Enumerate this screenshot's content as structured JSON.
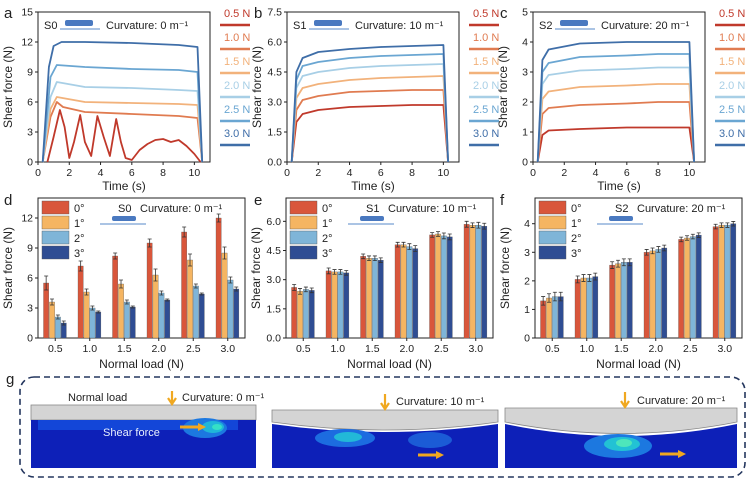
{
  "legend_colors": {
    "loads": [
      "#c0392b",
      "#e07b50",
      "#f2b27b",
      "#a8cfe6",
      "#6aa6d2",
      "#3f6ea8"
    ],
    "angles": [
      "#d9563b",
      "#f5b562",
      "#7fb5d8",
      "#2f4d93"
    ]
  },
  "chart_data": [
    {
      "panel": "a",
      "type": "line",
      "label": "S0",
      "curvature_text": "Curvature: 0 m⁻¹",
      "xlabel": "Time (s)",
      "ylabel": "Shear force (N)",
      "xlim": [
        0,
        11
      ],
      "ylim": [
        0,
        15
      ],
      "xticks": [
        0,
        2,
        4,
        6,
        8,
        10
      ],
      "yticks": [
        0,
        3,
        6,
        9,
        12,
        15
      ],
      "series": [
        {
          "name": "0.5 N",
          "values": [
            [
              0.6,
              0
            ],
            [
              1.0,
              2.5
            ],
            [
              1.4,
              5.2
            ],
            [
              1.7,
              3.5
            ],
            [
              2.0,
              0.4
            ],
            [
              2.3,
              2.0
            ],
            [
              2.7,
              4.7
            ],
            [
              3.0,
              2.0
            ],
            [
              3.4,
              0.6
            ],
            [
              3.8,
              4.6
            ],
            [
              4.2,
              2.5
            ],
            [
              4.6,
              0.6
            ],
            [
              5.0,
              4.3
            ],
            [
              5.3,
              2.0
            ],
            [
              5.6,
              0.4
            ],
            [
              6.0,
              0.2
            ],
            [
              6.5,
              1.2
            ],
            [
              7.0,
              1.8
            ],
            [
              7.5,
              2.2
            ],
            [
              8.0,
              2.3
            ],
            [
              8.5,
              2.0
            ],
            [
              9.0,
              2.2
            ],
            [
              9.5,
              1.6
            ],
            [
              10.0,
              0.8
            ],
            [
              10.4,
              0
            ]
          ]
        },
        {
          "name": "1.0 N",
          "values": [
            [
              0.3,
              0
            ],
            [
              0.8,
              4.5
            ],
            [
              1.2,
              6.0
            ],
            [
              1.6,
              5.5
            ],
            [
              3,
              5.0
            ],
            [
              6,
              4.8
            ],
            [
              9,
              4.6
            ],
            [
              10.2,
              4.4
            ],
            [
              10.5,
              0
            ]
          ]
        },
        {
          "name": "1.5 N",
          "values": [
            [
              0.3,
              0
            ],
            [
              0.8,
              5.3
            ],
            [
              1.2,
              6.5
            ],
            [
              3,
              6.0
            ],
            [
              6,
              5.9
            ],
            [
              9,
              5.8
            ],
            [
              10.2,
              5.7
            ],
            [
              10.5,
              0
            ]
          ]
        },
        {
          "name": "2.0 N",
          "values": [
            [
              0.3,
              0
            ],
            [
              0.8,
              6.5
            ],
            [
              1.2,
              8.0
            ],
            [
              3,
              7.5
            ],
            [
              6,
              7.4
            ],
            [
              9,
              7.2
            ],
            [
              10.2,
              7.1
            ],
            [
              10.5,
              0
            ]
          ]
        },
        {
          "name": "2.5 N",
          "values": [
            [
              0.3,
              0
            ],
            [
              0.8,
              8.5
            ],
            [
              1.2,
              9.7
            ],
            [
              3,
              9.5
            ],
            [
              6,
              9.3
            ],
            [
              9,
              9.2
            ],
            [
              10.2,
              9.0
            ],
            [
              10.5,
              0
            ]
          ]
        },
        {
          "name": "3.0 N",
          "values": [
            [
              0.3,
              0
            ],
            [
              0.7,
              9.5
            ],
            [
              1.0,
              11.6
            ],
            [
              1.5,
              12.0
            ],
            [
              3,
              12.0
            ],
            [
              6,
              11.9
            ],
            [
              9,
              11.7
            ],
            [
              10.2,
              11.5
            ],
            [
              10.5,
              0
            ]
          ]
        }
      ]
    },
    {
      "panel": "b",
      "type": "line",
      "label": "S1",
      "curvature_text": "Curvature: 10 m⁻¹",
      "xlabel": "Time (s)",
      "ylabel": "Shear force (N)",
      "xlim": [
        0,
        11
      ],
      "ylim": [
        0,
        7.5
      ],
      "xticks": [
        0,
        2,
        4,
        6,
        8,
        10
      ],
      "yticks": [
        0,
        1.5,
        3.0,
        4.5,
        6.0,
        7.5
      ],
      "series": [
        {
          "name": "0.5 N",
          "values": [
            [
              0.3,
              0
            ],
            [
              0.6,
              2.0
            ],
            [
              1.0,
              2.4
            ],
            [
              2,
              2.6
            ],
            [
              4,
              2.75
            ],
            [
              6,
              2.8
            ],
            [
              8,
              2.85
            ],
            [
              10.0,
              2.85
            ],
            [
              10.3,
              0
            ]
          ]
        },
        {
          "name": "1.0 N",
          "values": [
            [
              0.3,
              0
            ],
            [
              0.6,
              2.6
            ],
            [
              1.0,
              3.1
            ],
            [
              2,
              3.3
            ],
            [
              4,
              3.5
            ],
            [
              6,
              3.55
            ],
            [
              8,
              3.6
            ],
            [
              10.0,
              3.6
            ],
            [
              10.3,
              0
            ]
          ]
        },
        {
          "name": "1.5 N",
          "values": [
            [
              0.3,
              0
            ],
            [
              0.6,
              3.2
            ],
            [
              1.0,
              3.7
            ],
            [
              2,
              3.9
            ],
            [
              4,
              4.1
            ],
            [
              6,
              4.2
            ],
            [
              8,
              4.25
            ],
            [
              10.0,
              4.3
            ],
            [
              10.3,
              0
            ]
          ]
        },
        {
          "name": "2.0 N",
          "values": [
            [
              0.3,
              0
            ],
            [
              0.6,
              3.7
            ],
            [
              1.0,
              4.3
            ],
            [
              2,
              4.5
            ],
            [
              4,
              4.7
            ],
            [
              6,
              4.8
            ],
            [
              8,
              4.85
            ],
            [
              10.0,
              4.9
            ],
            [
              10.3,
              0
            ]
          ]
        },
        {
          "name": "2.5 N",
          "values": [
            [
              0.3,
              0
            ],
            [
              0.6,
              4.1
            ],
            [
              1.0,
              4.8
            ],
            [
              2,
              5.0
            ],
            [
              4,
              5.2
            ],
            [
              6,
              5.3
            ],
            [
              8,
              5.35
            ],
            [
              10.0,
              5.4
            ],
            [
              10.3,
              0
            ]
          ]
        },
        {
          "name": "3.0 N",
          "values": [
            [
              0.3,
              0
            ],
            [
              0.6,
              4.5
            ],
            [
              1.0,
              5.2
            ],
            [
              2,
              5.5
            ],
            [
              4,
              5.65
            ],
            [
              6,
              5.75
            ],
            [
              8,
              5.8
            ],
            [
              10.0,
              5.85
            ],
            [
              10.3,
              0
            ]
          ]
        }
      ]
    },
    {
      "panel": "c",
      "type": "line",
      "label": "S2",
      "curvature_text": "Curvature: 20 m⁻¹",
      "xlabel": "Time (s)",
      "ylabel": "Shear force (N)",
      "xlim": [
        0,
        11
      ],
      "ylim": [
        0,
        5
      ],
      "xticks": [
        0,
        2,
        4,
        6,
        8,
        10
      ],
      "yticks": [
        0,
        1,
        2,
        3,
        4,
        5
      ],
      "series": [
        {
          "name": "0.5 N",
          "values": [
            [
              0.3,
              0
            ],
            [
              0.6,
              0.9
            ],
            [
              1.0,
              1.05
            ],
            [
              3,
              1.1
            ],
            [
              6,
              1.15
            ],
            [
              8,
              1.15
            ],
            [
              10.0,
              1.15
            ],
            [
              10.3,
              0
            ]
          ]
        },
        {
          "name": "1.0 N",
          "values": [
            [
              0.3,
              0
            ],
            [
              0.6,
              1.6
            ],
            [
              1.0,
              1.8
            ],
            [
              3,
              1.9
            ],
            [
              6,
              1.95
            ],
            [
              8,
              2.0
            ],
            [
              10.0,
              2.0
            ],
            [
              10.3,
              0
            ]
          ]
        },
        {
          "name": "1.5 N",
          "values": [
            [
              0.3,
              0
            ],
            [
              0.6,
              2.1
            ],
            [
              1.0,
              2.35
            ],
            [
              3,
              2.5
            ],
            [
              6,
              2.55
            ],
            [
              8,
              2.6
            ],
            [
              10.0,
              2.6
            ],
            [
              10.3,
              0
            ]
          ]
        },
        {
          "name": "2.0 N",
          "values": [
            [
              0.3,
              0
            ],
            [
              0.6,
              2.6
            ],
            [
              1.0,
              2.9
            ],
            [
              3,
              3.05
            ],
            [
              6,
              3.1
            ],
            [
              8,
              3.15
            ],
            [
              10.0,
              3.15
            ],
            [
              10.3,
              0
            ]
          ]
        },
        {
          "name": "2.5 N",
          "values": [
            [
              0.3,
              0
            ],
            [
              0.6,
              3.0
            ],
            [
              1.0,
              3.3
            ],
            [
              3,
              3.5
            ],
            [
              6,
              3.55
            ],
            [
              8,
              3.6
            ],
            [
              10.0,
              3.6
            ],
            [
              10.3,
              0
            ]
          ]
        },
        {
          "name": "3.0 N",
          "values": [
            [
              0.3,
              0
            ],
            [
              0.6,
              3.4
            ],
            [
              1.0,
              3.75
            ],
            [
              3,
              3.95
            ],
            [
              6,
              4.0
            ],
            [
              8,
              4.0
            ],
            [
              10.0,
              4.0
            ],
            [
              10.3,
              0
            ]
          ]
        }
      ]
    },
    {
      "panel": "d",
      "type": "bar",
      "label": "S0",
      "curvature_text": "Curvature: 0 m⁻¹",
      "xlabel": "Normal load (N)",
      "ylabel": "Shear force (N)",
      "ylim": [
        0,
        14
      ],
      "yticks": [
        0,
        3,
        6,
        9,
        12
      ],
      "categories": [
        "0.5",
        "1.0",
        "1.5",
        "2.0",
        "2.5",
        "3.0"
      ],
      "series": [
        {
          "name": "0°",
          "values": [
            5.5,
            7.2,
            8.2,
            9.5,
            10.6,
            12.0
          ],
          "err": [
            0.7,
            0.5,
            0.3,
            0.4,
            0.5,
            0.4
          ]
        },
        {
          "name": "1°",
          "values": [
            3.6,
            4.6,
            5.4,
            6.3,
            7.8,
            8.5
          ],
          "err": [
            0.3,
            0.3,
            0.4,
            0.6,
            0.6,
            0.6
          ]
        },
        {
          "name": "2°",
          "values": [
            2.1,
            3.0,
            3.6,
            4.5,
            5.2,
            5.8
          ],
          "err": [
            0.2,
            0.2,
            0.2,
            0.2,
            0.2,
            0.3
          ]
        },
        {
          "name": "3°",
          "values": [
            1.5,
            2.6,
            3.1,
            3.8,
            4.4,
            4.9
          ],
          "err": [
            0.2,
            0.1,
            0.1,
            0.1,
            0.1,
            0.2
          ]
        }
      ]
    },
    {
      "panel": "e",
      "type": "bar",
      "label": "S1",
      "curvature_text": "Curvature: 10 m⁻¹",
      "xlabel": "Normal load (N)",
      "ylabel": "Shear force (N)",
      "ylim": [
        0,
        7.2
      ],
      "yticks": [
        0,
        1.5,
        3.0,
        4.5,
        6.0
      ],
      "categories": [
        "0.5",
        "1.0",
        "1.5",
        "2.0",
        "2.5",
        "3.0"
      ],
      "series": [
        {
          "name": "0°",
          "values": [
            2.6,
            3.45,
            4.2,
            4.8,
            5.3,
            5.85
          ],
          "err": [
            0.15,
            0.15,
            0.12,
            0.12,
            0.12,
            0.15
          ]
        },
        {
          "name": "1°",
          "values": [
            2.4,
            3.4,
            4.1,
            4.8,
            5.35,
            5.8
          ],
          "err": [
            0.15,
            0.12,
            0.12,
            0.12,
            0.12,
            0.12
          ]
        },
        {
          "name": "2°",
          "values": [
            2.5,
            3.4,
            4.1,
            4.7,
            5.25,
            5.8
          ],
          "err": [
            0.12,
            0.12,
            0.12,
            0.15,
            0.15,
            0.15
          ]
        },
        {
          "name": "3°",
          "values": [
            2.45,
            3.35,
            4.0,
            4.6,
            5.2,
            5.75
          ],
          "err": [
            0.12,
            0.12,
            0.12,
            0.15,
            0.15,
            0.15
          ]
        }
      ]
    },
    {
      "panel": "f",
      "type": "bar",
      "label": "S2",
      "curvature_text": "Curvature: 20 m⁻¹",
      "xlabel": "Normal load (N)",
      "ylabel": "Shear force (N)",
      "ylim": [
        0,
        4.9
      ],
      "yticks": [
        0,
        1,
        2,
        3,
        4
      ],
      "categories": [
        "0.5",
        "1.0",
        "1.5",
        "2.0",
        "2.5",
        "3.0"
      ],
      "series": [
        {
          "name": "0°",
          "values": [
            1.3,
            2.05,
            2.55,
            3.0,
            3.45,
            3.9
          ],
          "err": [
            0.15,
            0.12,
            0.12,
            0.1,
            0.08,
            0.08
          ]
        },
        {
          "name": "1°",
          "values": [
            1.4,
            2.1,
            2.6,
            3.05,
            3.5,
            3.95
          ],
          "err": [
            0.15,
            0.12,
            0.12,
            0.1,
            0.08,
            0.08
          ]
        },
        {
          "name": "2°",
          "values": [
            1.45,
            2.1,
            2.65,
            3.1,
            3.55,
            3.95
          ],
          "err": [
            0.15,
            0.12,
            0.12,
            0.1,
            0.08,
            0.08
          ]
        },
        {
          "name": "3°",
          "values": [
            1.45,
            2.15,
            2.65,
            3.15,
            3.6,
            4.0
          ],
          "err": [
            0.15,
            0.12,
            0.12,
            0.1,
            0.08,
            0.08
          ]
        }
      ]
    }
  ],
  "panel_g": {
    "letter": "g",
    "sims": [
      {
        "normal_load_label": "Normal load",
        "curvature_text": "Curvature: 0 m⁻¹",
        "shear_label": "Shear force"
      },
      {
        "curvature_text": "Curvature: 10 m⁻¹"
      },
      {
        "curvature_text": "Curvature: 20 m⁻¹"
      }
    ]
  }
}
